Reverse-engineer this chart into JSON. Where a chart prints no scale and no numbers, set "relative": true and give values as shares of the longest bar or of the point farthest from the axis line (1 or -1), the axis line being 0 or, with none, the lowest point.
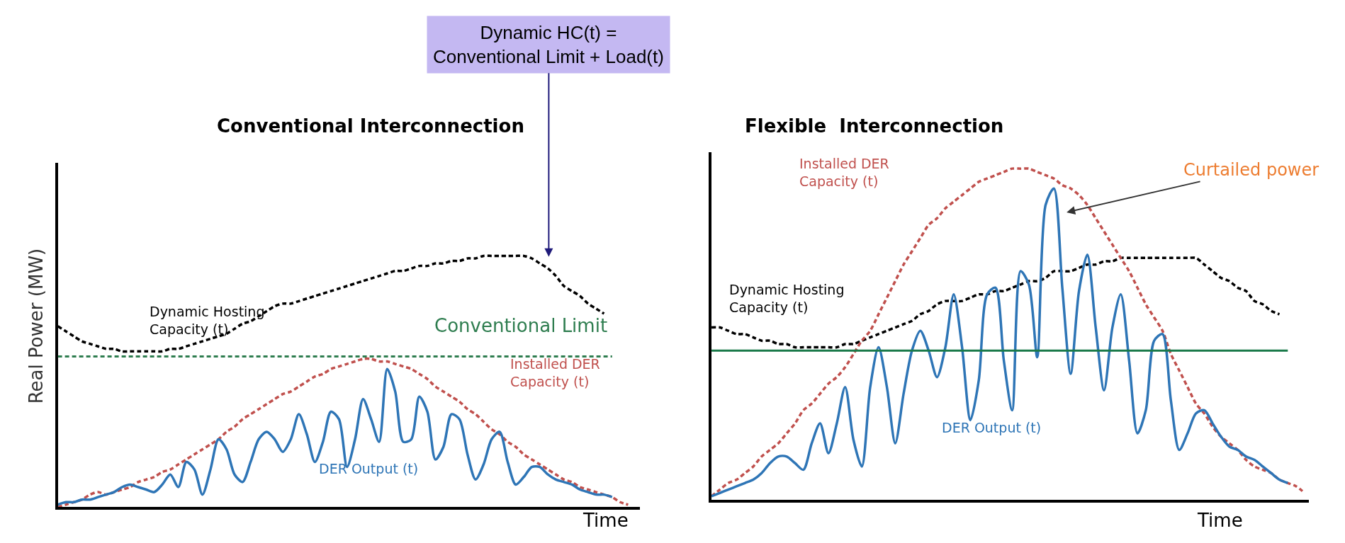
{
  "chart_data": [
    {
      "type": "line",
      "relative": true,
      "title": "Conventional Interconnection",
      "xlabel": "Time",
      "ylabel": "Real Power (MW)",
      "categories": [
        null,
        null,
        null,
        null,
        null,
        null,
        null,
        null,
        null,
        null,
        null,
        null,
        null,
        null,
        null,
        null,
        null,
        null,
        null,
        null,
        null,
        null,
        null,
        null,
        null,
        null,
        null,
        null,
        null,
        null,
        null,
        null,
        null,
        null,
        null,
        null,
        null,
        null,
        null,
        null,
        null,
        null,
        null,
        null,
        null,
        null,
        null,
        null,
        null,
        null,
        null,
        null,
        null,
        null,
        null,
        null,
        null,
        null,
        null,
        null,
        null,
        null,
        null,
        null,
        null,
        null,
        null,
        null,
        null,
        null,
        null,
        null
      ],
      "series": [
        {
          "name": "Dynamic Hosting Capacity (t)",
          "color": "#000000",
          "line_style": "dashed",
          "values": [
            0.72,
            0.7,
            0.68,
            0.66,
            0.65,
            0.64,
            0.63,
            0.63,
            0.62,
            0.62,
            0.62,
            0.62,
            0.62,
            0.62,
            0.63,
            0.63,
            0.64,
            0.65,
            0.66,
            0.67,
            0.68,
            0.69,
            0.71,
            0.73,
            0.74,
            0.76,
            0.78,
            0.8,
            0.81,
            0.81,
            0.82,
            0.83,
            0.84,
            0.85,
            0.86,
            0.87,
            0.88,
            0.89,
            0.9,
            0.91,
            0.92,
            0.93,
            0.94,
            0.94,
            0.95,
            0.96,
            0.96,
            0.97,
            0.97,
            0.98,
            0.98,
            0.99,
            0.99,
            1.0,
            1.0,
            1.0,
            1.0,
            1.0,
            1.0,
            0.99,
            0.97,
            0.95,
            0.92,
            0.88,
            0.86,
            0.84,
            0.81,
            0.79,
            0.77,
            null,
            null,
            null
          ]
        },
        {
          "name": "Installed DER Capacity (t)",
          "color": "#c0504d",
          "line_style": "dashed",
          "values": [
            0.0,
            0.01,
            0.02,
            0.03,
            0.05,
            0.06,
            0.05,
            0.06,
            0.07,
            0.08,
            0.1,
            0.11,
            0.12,
            0.14,
            0.15,
            0.17,
            0.19,
            0.21,
            0.23,
            0.25,
            0.27,
            0.3,
            0.32,
            0.35,
            0.37,
            0.39,
            0.41,
            0.43,
            0.45,
            0.46,
            0.48,
            0.5,
            0.52,
            0.53,
            0.55,
            0.56,
            0.57,
            0.58,
            0.59,
            0.59,
            0.58,
            0.58,
            0.57,
            0.56,
            0.55,
            0.53,
            0.51,
            0.48,
            0.46,
            0.44,
            0.42,
            0.39,
            0.37,
            0.34,
            0.31,
            0.29,
            0.26,
            0.24,
            0.21,
            0.19,
            0.17,
            0.15,
            0.13,
            0.11,
            0.1,
            0.08,
            0.07,
            0.06,
            0.05,
            0.04,
            0.02,
            0.01
          ]
        },
        {
          "name": "DER Output (t)",
          "color": "#2e75b6",
          "values": [
            0.01,
            0.02,
            0.02,
            0.03,
            0.03,
            0.04,
            0.05,
            0.06,
            0.08,
            0.09,
            0.08,
            0.07,
            0.06,
            0.09,
            0.13,
            0.08,
            0.18,
            0.15,
            0.05,
            0.15,
            0.27,
            0.23,
            0.13,
            0.1,
            0.18,
            0.27,
            0.3,
            0.27,
            0.22,
            0.27,
            0.37,
            0.29,
            0.18,
            0.26,
            0.38,
            0.35,
            0.16,
            0.27,
            0.43,
            0.35,
            0.26,
            0.55,
            0.46,
            0.26,
            0.27,
            0.44,
            0.38,
            0.19,
            0.24,
            0.37,
            0.35,
            0.21,
            0.11,
            0.17,
            0.27,
            0.3,
            0.18,
            0.09,
            0.12,
            0.16,
            0.16,
            0.13,
            0.11,
            0.1,
            0.09,
            0.07,
            0.06,
            0.05,
            0.05,
            0.04,
            null,
            null
          ]
        }
      ],
      "ref_lines": [
        {
          "axis": "y",
          "value": 0.6,
          "label": "Conventional Limit",
          "color": "#2e7d4f",
          "line_style": "dashed"
        }
      ],
      "annotations": [
        "Dynamic HC(t) =\nConventional Limit + Load(t)"
      ]
    },
    {
      "type": "line",
      "relative": true,
      "title": "Flexible  Interconnection",
      "xlabel": "Time",
      "categories": [
        null,
        null,
        null,
        null,
        null,
        null,
        null,
        null,
        null,
        null,
        null,
        null,
        null,
        null,
        null,
        null,
        null,
        null,
        null,
        null,
        null,
        null,
        null,
        null,
        null,
        null,
        null,
        null,
        null,
        null,
        null,
        null,
        null,
        null,
        null,
        null,
        null,
        null,
        null,
        null,
        null,
        null,
        null,
        null,
        null,
        null,
        null,
        null,
        null,
        null,
        null,
        null,
        null,
        null,
        null,
        null,
        null,
        null,
        null,
        null,
        null,
        null,
        null,
        null,
        null,
        null,
        null,
        null,
        null,
        null,
        null,
        null
      ],
      "series": [
        {
          "name": "Dynamic Hosting Capacity (t)",
          "color": "#000000",
          "line_style": "dashed",
          "values": [
            0.52,
            0.52,
            0.51,
            0.5,
            0.5,
            0.49,
            0.48,
            0.48,
            0.47,
            0.47,
            0.46,
            0.46,
            0.46,
            0.46,
            0.46,
            0.46,
            0.47,
            0.47,
            0.48,
            0.49,
            0.5,
            0.51,
            0.52,
            0.53,
            0.54,
            0.56,
            0.57,
            0.59,
            0.6,
            0.6,
            0.6,
            0.61,
            0.62,
            0.62,
            0.63,
            0.63,
            0.64,
            0.65,
            0.66,
            0.66,
            0.67,
            0.69,
            0.69,
            0.69,
            0.7,
            0.71,
            0.71,
            0.72,
            0.72,
            0.73,
            0.73,
            0.73,
            0.73,
            0.73,
            0.73,
            0.73,
            0.73,
            0.73,
            0.73,
            0.71,
            0.69,
            0.67,
            0.66,
            0.64,
            0.63,
            0.6,
            0.59,
            0.57,
            0.56,
            null,
            null,
            null
          ]
        },
        {
          "name": "Installed DER Capacity (t)",
          "color": "#c0504d",
          "line_style": "dashed",
          "values": [
            0.01,
            0.03,
            0.05,
            0.06,
            0.08,
            0.1,
            0.13,
            0.15,
            0.17,
            0.2,
            0.23,
            0.27,
            0.29,
            0.32,
            0.35,
            0.37,
            0.4,
            0.44,
            0.48,
            0.51,
            0.56,
            0.61,
            0.66,
            0.71,
            0.75,
            0.79,
            0.83,
            0.85,
            0.88,
            0.9,
            0.92,
            0.94,
            0.96,
            0.97,
            0.98,
            0.99,
            1.0,
            1.0,
            1.0,
            0.99,
            0.98,
            0.97,
            0.95,
            0.94,
            0.92,
            0.89,
            0.85,
            0.81,
            0.77,
            0.73,
            0.69,
            0.64,
            0.59,
            0.55,
            0.51,
            0.44,
            0.39,
            0.34,
            0.29,
            0.26,
            0.22,
            0.19,
            0.17,
            0.15,
            0.12,
            0.1,
            0.09,
            0.08,
            0.06,
            0.05,
            0.04,
            0.02
          ]
        },
        {
          "name": "DER Output (t)",
          "color": "#2e75b6",
          "values": [
            0.01,
            0.02,
            0.03,
            0.04,
            0.05,
            0.06,
            0.08,
            0.11,
            0.13,
            0.13,
            0.11,
            0.09,
            0.17,
            0.23,
            0.14,
            0.23,
            0.34,
            0.18,
            0.1,
            0.34,
            0.46,
            0.34,
            0.17,
            0.32,
            0.45,
            0.51,
            0.45,
            0.37,
            0.46,
            0.62,
            0.46,
            0.24,
            0.36,
            0.62,
            0.64,
            0.42,
            0.27,
            0.69,
            0.65,
            0.43,
            0.89,
            0.94,
            0.64,
            0.38,
            0.63,
            0.74,
            0.52,
            0.33,
            0.52,
            0.62,
            0.42,
            0.2,
            0.27,
            0.48,
            0.5,
            0.3,
            0.15,
            0.2,
            0.26,
            0.27,
            0.23,
            0.19,
            0.16,
            0.15,
            0.13,
            0.12,
            0.1,
            0.08,
            0.06,
            0.05,
            null,
            null
          ]
        }
      ],
      "ref_lines": [
        {
          "axis": "y",
          "value": 0.45,
          "color": "#1a7a4a",
          "line_style": "solid"
        }
      ],
      "annotations": [
        "Curtailed power"
      ]
    }
  ]
}
